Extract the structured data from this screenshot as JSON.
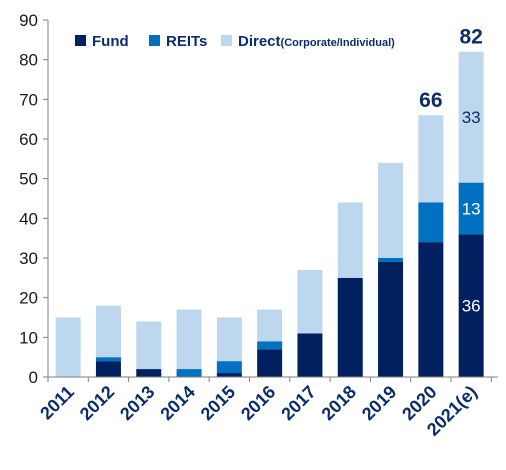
{
  "chart_data": {
    "type": "bar",
    "stacked": true,
    "categories": [
      "2011",
      "2012",
      "2013",
      "2014",
      "2015",
      "2016",
      "2017",
      "2018",
      "2019",
      "2020",
      "2021(e)"
    ],
    "series": [
      {
        "name": "Fund",
        "color": "#002060",
        "values": [
          0,
          4,
          2,
          0,
          1,
          7,
          11,
          25,
          29,
          34,
          36
        ]
      },
      {
        "name": "REITs",
        "color": "#0070c0",
        "values": [
          0,
          1,
          0,
          2,
          3,
          2,
          0,
          0,
          1,
          10,
          13
        ]
      },
      {
        "name": "Direct",
        "name_suffix": "(Corporate/Individual)",
        "color": "#bdd7ee",
        "values": [
          15,
          13,
          12,
          15,
          11,
          8,
          16,
          19,
          24,
          22,
          33
        ]
      }
    ],
    "ylim": [
      0,
      90
    ],
    "yticks": [
      0,
      10,
      20,
      30,
      40,
      50,
      60,
      70,
      80,
      90
    ],
    "ylabel": "",
    "xlabel": "",
    "title": "",
    "legend": {
      "placement": "top-left"
    },
    "grid": false,
    "totals_shown": [
      {
        "category": "2020",
        "text": "66"
      },
      {
        "category": "2021(e)",
        "text": "82"
      }
    ],
    "segment_labels": [
      {
        "category": "2021(e)",
        "series": "Fund",
        "text": "36"
      },
      {
        "category": "2021(e)",
        "series": "REITs",
        "text": "13"
      },
      {
        "category": "2021(e)",
        "series": "Direct",
        "text": "33"
      }
    ]
  }
}
